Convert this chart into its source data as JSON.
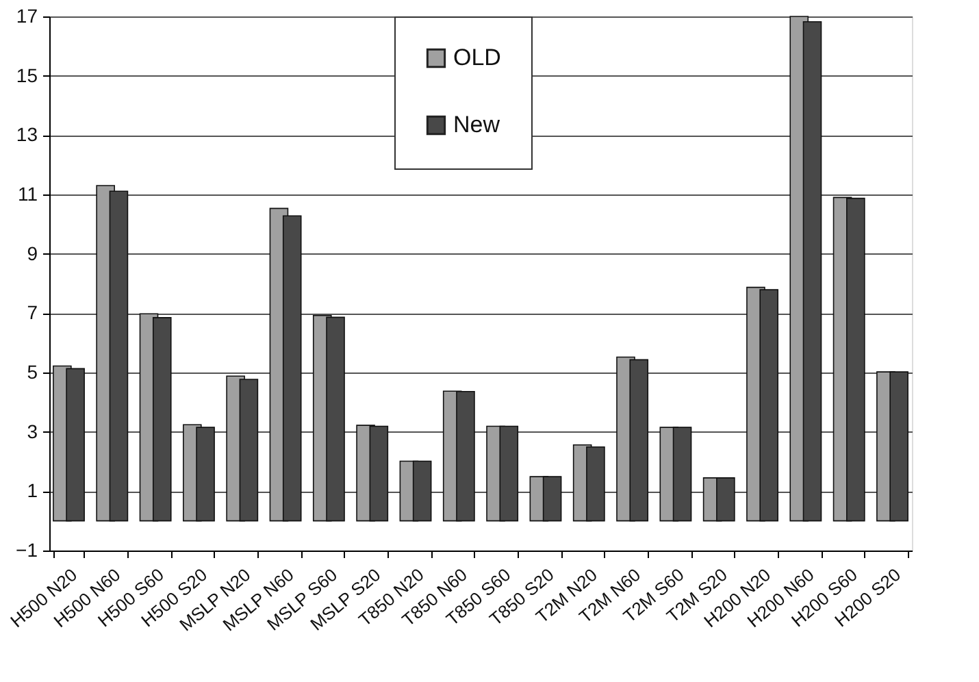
{
  "chart_data": {
    "type": "bar",
    "categories": [
      "H500 N20",
      "H500 N60",
      "H500 S60",
      "H500 S20",
      "MSLP N20",
      "MSLP N60",
      "MSLP S60",
      "MSLP S20",
      "T850 N20",
      "T850 N60",
      "T850 S60",
      "T850 S20",
      "T2M N20",
      "T2M N60",
      "T2M S60",
      "T2M S20",
      "H200 N20",
      "H200 N60",
      "H200 S60",
      "H200 S20"
    ],
    "series": [
      {
        "name": "OLD",
        "color": "#a0a0a0",
        "values": [
          5.22,
          11.3,
          6.98,
          3.24,
          4.88,
          10.53,
          6.92,
          3.22,
          2.01,
          4.37,
          3.19,
          1.49,
          2.56,
          5.52,
          3.15,
          1.45,
          7.87,
          17,
          10.9,
          5.02
        ]
      },
      {
        "name": "New",
        "color": "#484848",
        "values": [
          5.13,
          11.11,
          6.85,
          3.15,
          4.77,
          10.28,
          6.86,
          3.19,
          2.01,
          4.36,
          3.19,
          1.49,
          2.49,
          5.43,
          3.15,
          1.45,
          7.79,
          16.82,
          10.87,
          5.02
        ]
      }
    ],
    "ylim": [
      -1,
      17
    ],
    "yticks": [
      -1,
      1,
      3,
      5,
      7,
      9,
      11,
      13,
      15,
      17
    ],
    "grid": "y",
    "legend": "top"
  }
}
